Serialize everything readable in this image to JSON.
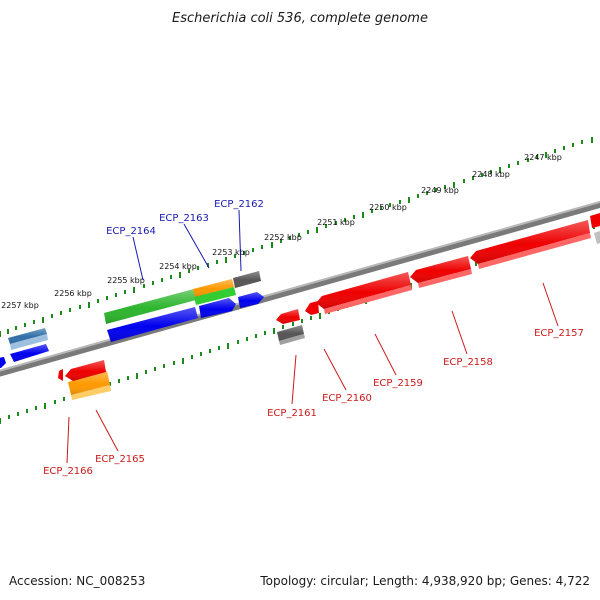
{
  "title": "Escherichia coli 536, complete genome",
  "footer": {
    "accession": "Accession: NC_008253",
    "summary": "Topology: circular; Length: 4,938,920 bp; Genes: 4,722"
  },
  "colors": {
    "backbone": "#808080",
    "tick": "#1a8c1a",
    "forward_label": "#1a1ab3",
    "reverse_label": "#cc1a1a",
    "red": "#ff0000",
    "blue": "#0000ee",
    "green": "#33cc33",
    "orange": "#ff9900",
    "gray": "#606060",
    "steel": "#4a7fb5"
  },
  "scale_labels": [
    "2247 kbp",
    "2248 kbp",
    "2249 kbp",
    "2250 kbp",
    "2251 kbp",
    "2252 kbp",
    "2253 kbp",
    "2254 kbp",
    "2255 kbp",
    "2256 kbp",
    "2257 kbp"
  ],
  "forward_gene_labels": [
    "ECP_2162",
    "ECP_2163",
    "ECP_2164"
  ],
  "reverse_gene_labels": [
    "ECP_2157",
    "ECP_2158",
    "ECP_2159",
    "ECP_2160",
    "ECP_2161",
    "ECP_2165",
    "ECP_2166"
  ]
}
